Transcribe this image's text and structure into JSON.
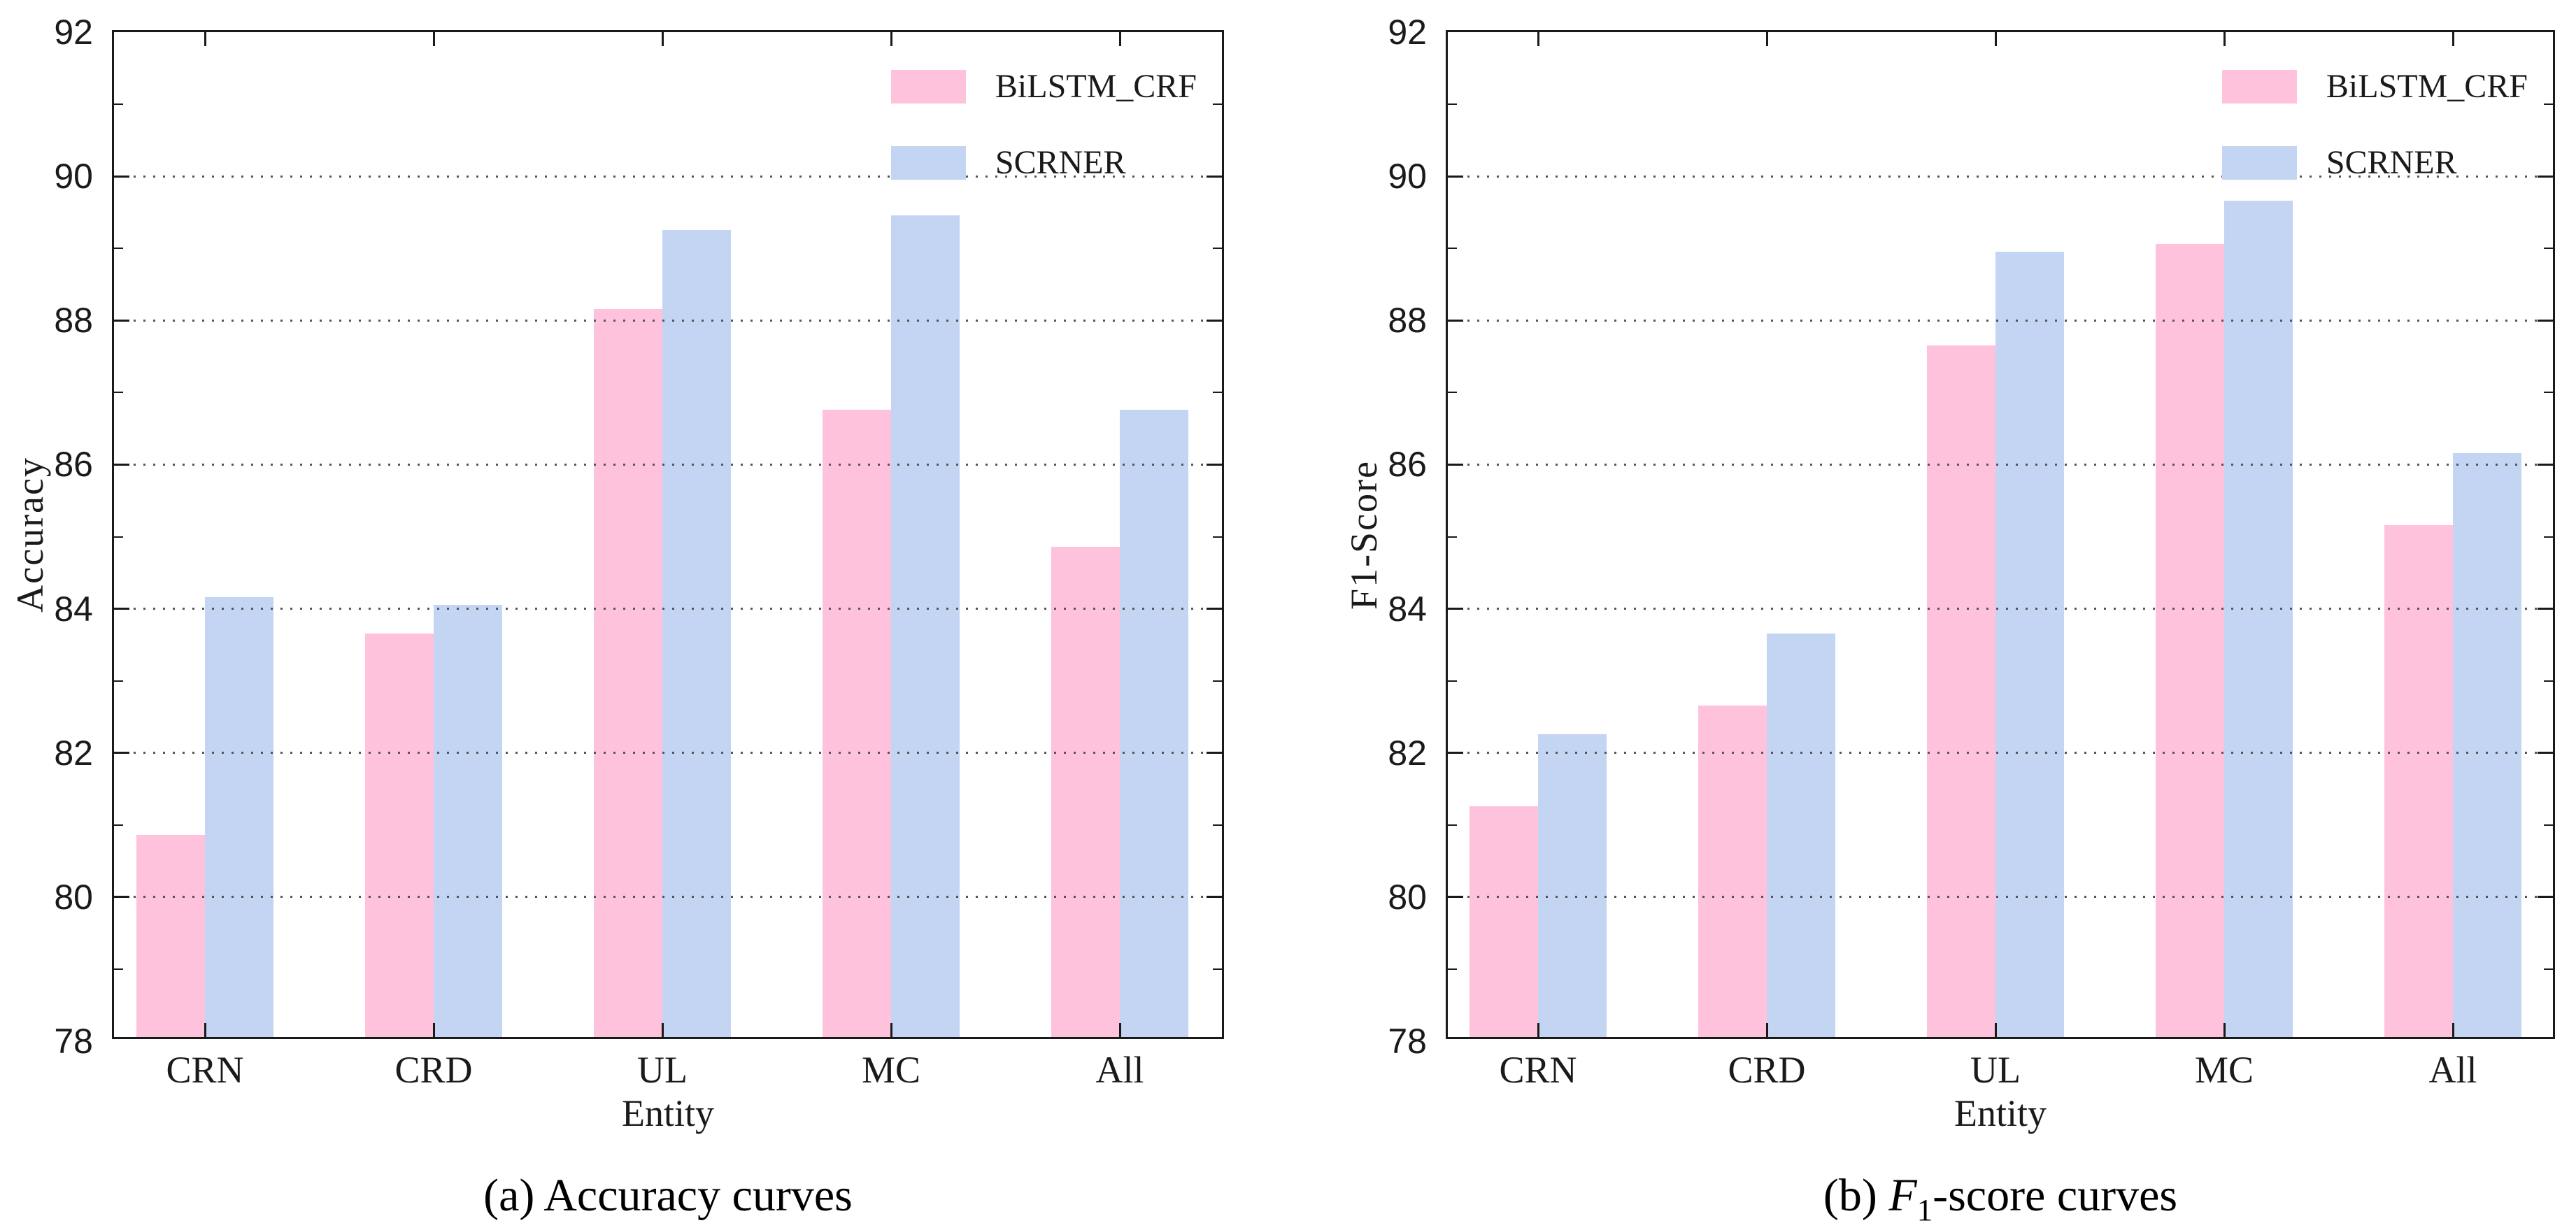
{
  "figure": {
    "background": "#ffffff",
    "axis_color": "#1a1a1a",
    "grid_dot_color": "#555555",
    "legend": [
      "BiLSTM_CRF",
      "SCRNER"
    ],
    "series_colors": {
      "BiLSTM_CRF": "#ffc2dc",
      "SCRNER": "#c3d5f2"
    }
  },
  "chart_data": [
    {
      "type": "bar",
      "caption": {
        "text": "(a) Accuracy curves"
      },
      "xlabel": "Entity",
      "ylabel": "Accuracy",
      "categories": [
        "CRN",
        "CRD",
        "UL",
        "MC",
        "All"
      ],
      "series": [
        {
          "name": "BiLSTM_CRF",
          "color": "#ffc2dc",
          "values": [
            80.8,
            83.6,
            88.1,
            86.7,
            84.8
          ]
        },
        {
          "name": "SCRNER",
          "color": "#c3d5f2",
          "values": [
            84.1,
            84.0,
            89.2,
            89.4,
            86.7
          ]
        }
      ],
      "ylim": [
        78,
        92
      ],
      "yticks": [
        78,
        80,
        82,
        84,
        86,
        88,
        90,
        92
      ],
      "grid": true,
      "grid_style": "dotted",
      "legend_position": "top-right"
    },
    {
      "type": "bar",
      "caption": {
        "prefix": "(b) ",
        "var": "F",
        "sub": "1",
        "rest": "-score curves"
      },
      "xlabel": "Entity",
      "ylabel": "F1-Score",
      "categories": [
        "CRN",
        "CRD",
        "UL",
        "MC",
        "All"
      ],
      "series": [
        {
          "name": "BiLSTM_CRF",
          "color": "#ffc2dc",
          "values": [
            81.2,
            82.6,
            87.6,
            89.0,
            85.1
          ]
        },
        {
          "name": "SCRNER",
          "color": "#c3d5f2",
          "values": [
            82.2,
            83.6,
            88.9,
            89.6,
            86.1
          ]
        }
      ],
      "ylim": [
        78,
        92
      ],
      "yticks": [
        78,
        80,
        82,
        84,
        86,
        88,
        90,
        92
      ],
      "grid": true,
      "grid_style": "dotted",
      "legend_position": "top-right"
    }
  ]
}
